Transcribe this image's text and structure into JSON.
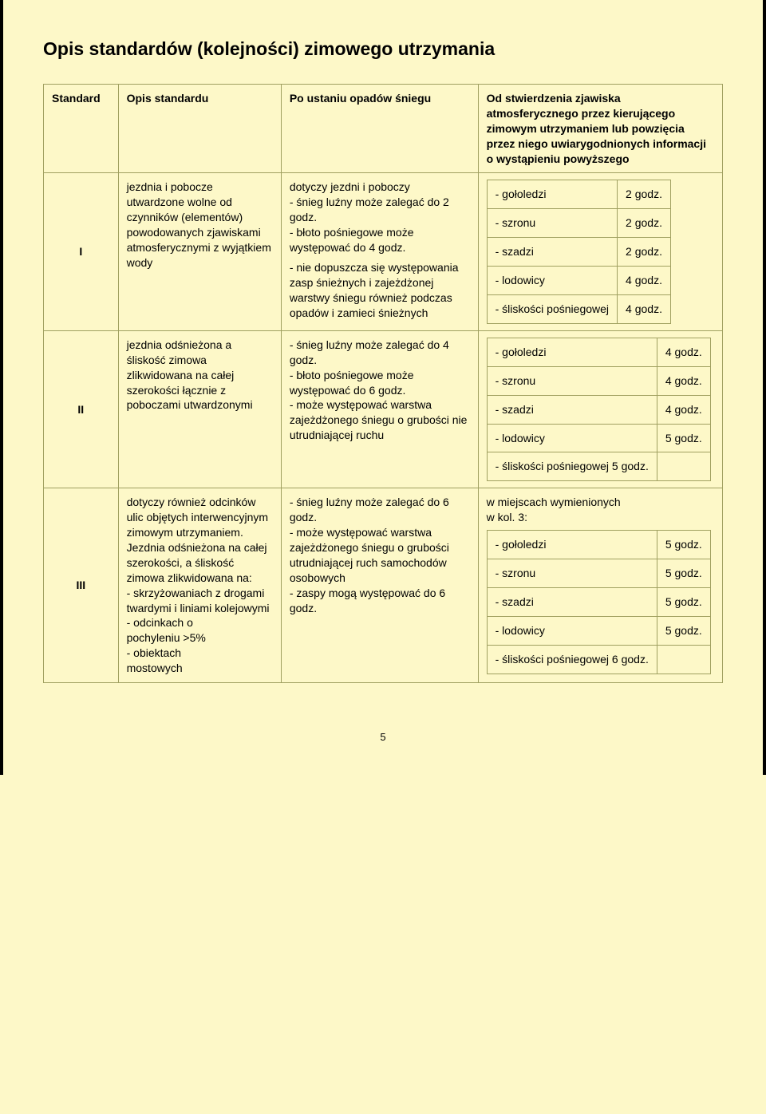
{
  "title": "Opis standardów (kolejności) zimowego utrzymania",
  "headers": {
    "standard": "Standard",
    "opis": "Opis standardu",
    "po_ustaniu": "Po ustaniu opadów śniegu",
    "od_stwierdzenia": "Od stwierdzenia zjawiska atmosferycznego przez kierującego zimowym utrzymaniem lub powzięcia przez niego uwiarygodnionych informacji o wystąpieniu powyższego"
  },
  "rows": [
    {
      "std": "I",
      "opis": "jezdnia i pobocze utwardzone wolne od czynników (elementów) powodowanych zjawiskami atmosferycznymi z wyjątkiem wody",
      "po_ustaniu_1": "dotyczy jezdni i poboczy\n- śnieg luźny może zalegać do 2 godz.\n- błoto pośniegowe może występować do 4 godz.",
      "po_ustaniu_2": "- nie dopuszcza się występowania zasp śnieżnych i zajeżdżonej warstwy śniegu również podczas opadów i zamieci śnieżnych",
      "times_preamble": "",
      "times": [
        [
          "- gołoledzi",
          "2 godz."
        ],
        [
          "- szronu",
          "2 godz."
        ],
        [
          "- szadzi",
          "2 godz."
        ],
        [
          "- lodowicy",
          "4 godz."
        ],
        [
          "- śliskości pośniegowej",
          "4 godz."
        ]
      ]
    },
    {
      "std": "II",
      "opis": "jezdnia odśnieżona a śliskość zimowa zlikwidowana na całej szerokości łącznie z poboczami utwardzonymi",
      "po_ustaniu_1": "- śnieg luźny może zalegać do 4 godz.\n- błoto pośniegowe może występować do 6 godz.\n- może występować warstwa zajeżdżonego śniegu o grubości nie utrudniającej ruchu",
      "po_ustaniu_2": "",
      "times_preamble": "",
      "times": [
        [
          "- gołoledzi",
          "4 godz."
        ],
        [
          "- szronu",
          "4 godz."
        ],
        [
          "- szadzi",
          "4 godz."
        ],
        [
          "- lodowicy",
          "5 godz."
        ],
        [
          "- śliskości pośniegowej 5 godz.",
          ""
        ]
      ]
    },
    {
      "std": "III",
      "opis": "dotyczy również odcinków ulic objętych interwencyjnym zimowym utrzymaniem. Jezdnia odśnieżona na całej szerokości, a śliskość zimowa zlikwidowana na:\n- skrzyżowaniach z drogami twardymi i liniami kolejowymi\n- odcinkach o\n  pochyleniu >5%\n- obiektach\n  mostowych",
      "po_ustaniu_1": "- śnieg luźny może zalegać do 6 godz.\n- może występować warstwa zajeżdżonego śniegu o grubości utrudniającej ruch samochodów osobowych\n- zaspy mogą występować do 6 godz.",
      "po_ustaniu_2": "",
      "times_preamble": "w miejscach wymienionych\n w kol. 3:",
      "times": [
        [
          "- gołoledzi",
          "5 godz."
        ],
        [
          "- szronu",
          "5 godz."
        ],
        [
          "- szadzi",
          "5 godz."
        ],
        [
          "- lodowicy",
          "5 godz."
        ],
        [
          "- śliskości pośniegowej 6 godz.",
          ""
        ]
      ]
    }
  ],
  "page_number": "5",
  "colors": {
    "page_bg": "#fdf8c8",
    "border": "#a0a060",
    "text": "#000000"
  }
}
